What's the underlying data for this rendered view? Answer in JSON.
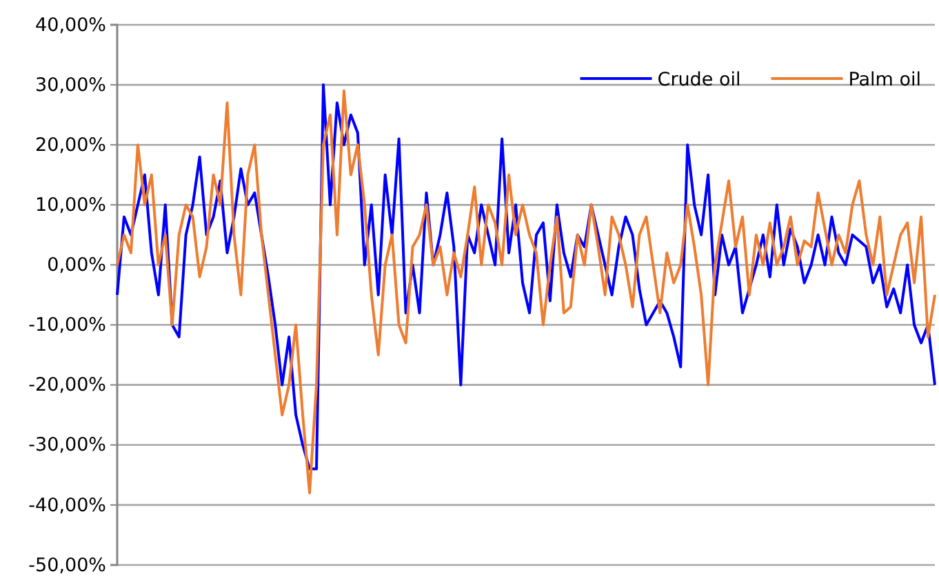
{
  "chart_data": {
    "type": "line",
    "categories": [
      null,
      null,
      null,
      null,
      null,
      null,
      null,
      null,
      null,
      null,
      null,
      null,
      null,
      null,
      null,
      null,
      null,
      null,
      null,
      null,
      null,
      null,
      null,
      null,
      null,
      null,
      null,
      null,
      null,
      null,
      null,
      null,
      null,
      null,
      null,
      null,
      null,
      null,
      null,
      null,
      null,
      null,
      null,
      null,
      null,
      null,
      null,
      null,
      null,
      null,
      null,
      null,
      null,
      null,
      null,
      null,
      null,
      null,
      null,
      null,
      null,
      null,
      null,
      null,
      null,
      null,
      null,
      null,
      null,
      null,
      null,
      null,
      null,
      null,
      null,
      null,
      null,
      null,
      null,
      null,
      null,
      null,
      null,
      null,
      null,
      null,
      null,
      null,
      null,
      null,
      null,
      null,
      null,
      null,
      null,
      null,
      null,
      null,
      null,
      null,
      null,
      null,
      null,
      null,
      null,
      null,
      null,
      null,
      null,
      null,
      null,
      null,
      null,
      null,
      null,
      null,
      null,
      null,
      null,
      null
    ],
    "series": [
      {
        "name": "Crude oil",
        "color": "#0000ff",
        "values": [
          -5,
          8,
          5,
          10,
          15,
          2,
          -5,
          10,
          -10,
          -12,
          5,
          10,
          18,
          5,
          8,
          14,
          2,
          8,
          16,
          10,
          12,
          5,
          -2,
          -10,
          -20,
          -12,
          -25,
          -30,
          -34,
          -34,
          30,
          10,
          27,
          20,
          25,
          22,
          0,
          10,
          -5,
          15,
          5,
          21,
          -8,
          0,
          -8,
          12,
          0,
          5,
          12,
          3,
          -20,
          5,
          2,
          10,
          5,
          0,
          21,
          2,
          10,
          -3,
          -8,
          5,
          7,
          -6,
          10,
          2,
          -2,
          5,
          3,
          10,
          5,
          0,
          -5,
          3,
          8,
          5,
          -4,
          -10,
          -8,
          -6,
          -8,
          -12,
          -17,
          20,
          10,
          5,
          15,
          -5,
          5,
          0,
          3,
          -8,
          -4,
          0,
          5,
          -2,
          10,
          0,
          6,
          3,
          -3,
          0,
          5,
          0,
          8,
          2,
          0,
          5,
          4,
          3,
          -3,
          0,
          -7,
          -4,
          -8,
          0,
          -10,
          -13,
          -10,
          -20
        ]
      },
      {
        "name": "Palm oil",
        "color": "#ed7d31",
        "values": [
          0,
          5,
          2,
          20,
          10,
          15,
          0,
          5,
          -10,
          5,
          10,
          8,
          -2,
          3,
          15,
          10,
          27,
          5,
          -5,
          15,
          20,
          5,
          -5,
          -15,
          -25,
          -20,
          -10,
          -25,
          -38,
          -20,
          20,
          25,
          5,
          29,
          15,
          20,
          10,
          -5,
          -15,
          0,
          5,
          -10,
          -13,
          3,
          5,
          10,
          0,
          3,
          -5,
          2,
          -2,
          5,
          13,
          0,
          10,
          7,
          0,
          15,
          5,
          10,
          5,
          2,
          -10,
          0,
          8,
          -8,
          -7,
          5,
          0,
          10,
          3,
          -5,
          8,
          5,
          0,
          -7,
          5,
          8,
          0,
          -8,
          2,
          -3,
          0,
          10,
          3,
          -5,
          -20,
          0,
          7,
          14,
          3,
          8,
          -5,
          5,
          0,
          7,
          0,
          3,
          8,
          0,
          4,
          3,
          12,
          6,
          0,
          5,
          2,
          10,
          14,
          5,
          0,
          8,
          -5,
          0,
          5,
          7,
          -3,
          8,
          -12,
          -5
        ]
      }
    ],
    "ylim": [
      -50,
      40
    ],
    "yticks": [
      {
        "value": -50,
        "label": "-50,00%"
      },
      {
        "value": -40,
        "label": "-40,00%"
      },
      {
        "value": -30,
        "label": "-30,00%"
      },
      {
        "value": -20,
        "label": "-20,00%"
      },
      {
        "value": -10,
        "label": "-10,00%"
      },
      {
        "value": 0,
        "label": "0,00%"
      },
      {
        "value": 10,
        "label": "10,00%"
      },
      {
        "value": 20,
        "label": "20,00%"
      },
      {
        "value": 30,
        "label": "30,00%"
      },
      {
        "value": 40,
        "label": "40,00%"
      }
    ],
    "grid": "y",
    "legend": "top right",
    "tick_labels": "y",
    "marker": "none",
    "line_style": "solid"
  }
}
